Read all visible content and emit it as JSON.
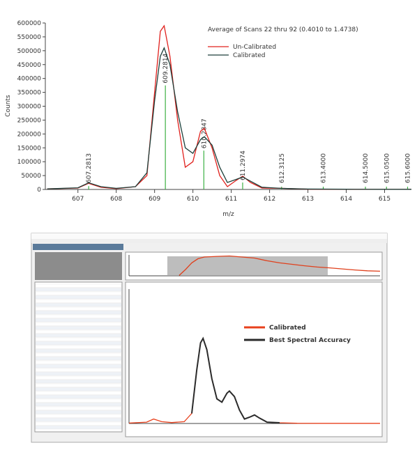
{
  "chart_data": [
    {
      "type": "line",
      "title": "Average of Scans 22 thru 92 (0.4010 to 1.4738)",
      "y_label": "Counts",
      "x_label": "m/z",
      "xlim": [
        606.15,
        615.7
      ],
      "xticks": [
        607,
        608,
        609,
        610,
        611,
        612,
        613,
        614,
        615
      ],
      "ylim": [
        0,
        600000
      ],
      "yticks": [
        0,
        50000,
        100000,
        150000,
        200000,
        250000,
        300000,
        350000,
        400000,
        450000,
        500000,
        550000,
        600000
      ],
      "x": [
        606.2,
        607.0,
        607.28,
        607.6,
        608.0,
        608.5,
        608.8,
        609.0,
        609.15,
        609.25,
        609.4,
        609.6,
        609.8,
        610.0,
        610.2,
        610.3,
        610.5,
        610.7,
        610.9,
        611.1,
        611.3,
        611.5,
        611.8,
        612.3,
        613.0,
        614.0,
        615.0,
        615.7
      ],
      "series": [
        {
          "name": "Un-Calibrated",
          "color": "#e0201c",
          "values": [
            2000,
            5000,
            22000,
            8000,
            3000,
            10000,
            50000,
            350000,
            570000,
            590000,
            480000,
            250000,
            80000,
            100000,
            210000,
            220000,
            150000,
            50000,
            10000,
            30000,
            48000,
            25000,
            5000,
            4000,
            1000,
            500,
            500,
            500
          ]
        },
        {
          "name": "Calibrated",
          "color": "#1c3f3a",
          "values": [
            2000,
            6000,
            24000,
            10000,
            4000,
            10000,
            60000,
            320000,
            480000,
            510000,
            450000,
            280000,
            150000,
            130000,
            180000,
            190000,
            160000,
            80000,
            25000,
            35000,
            45000,
            30000,
            8000,
            4000,
            1500,
            700,
            500,
            500
          ]
        }
      ],
      "peaks": {
        "color": "#3cb043",
        "x": [
          607.2813,
          609.2814,
          610.2847,
          611.2974,
          612.3125,
          613.4,
          614.5,
          615.05,
          615.6
        ],
        "x_labels": [
          "607.2813",
          "609.2814",
          "610.2847",
          "611.2974",
          "612.3125",
          "613.4000",
          "614.5000",
          "615.0500",
          "615.6000"
        ],
        "values": [
          12000,
          375000,
          140000,
          25000,
          1000,
          0,
          0,
          0,
          0
        ]
      }
    },
    {
      "type": "area",
      "xlim": [
        0,
        2.0
      ],
      "ylim": [
        0,
        1
      ],
      "x": [
        0.4,
        0.45,
        0.5,
        0.55,
        0.6,
        0.7,
        0.8,
        0.9,
        1.0,
        1.1,
        1.2,
        1.3,
        1.4,
        1.5,
        1.6,
        1.7,
        1.8,
        1.9,
        2.0
      ],
      "series": [
        {
          "color": "#e0401c",
          "values": [
            0.02,
            0.3,
            0.62,
            0.82,
            0.9,
            0.93,
            0.95,
            0.9,
            0.85,
            0.72,
            0.62,
            0.55,
            0.48,
            0.42,
            0.38,
            0.33,
            0.28,
            0.24,
            0.22
          ]
        }
      ]
    },
    {
      "type": "line",
      "xlim": [
        606.3,
        616.3
      ],
      "ylim": [
        0,
        600000
      ],
      "x": [
        606.3,
        607.0,
        607.28,
        607.6,
        608.0,
        608.5,
        608.8,
        609.0,
        609.15,
        609.25,
        609.4,
        609.6,
        609.8,
        610.0,
        610.2,
        610.3,
        610.5,
        610.7,
        610.9,
        611.1,
        611.3,
        611.5,
        611.8,
        612.3,
        613.0,
        614.0,
        615.0,
        616.3
      ],
      "series": [
        {
          "name": "Calibrated",
          "color": "#e8401c",
          "values": [
            2000,
            6000,
            20000,
            8000,
            4000,
            8000,
            45000,
            240000,
            360000,
            380000,
            330000,
            200000,
            110000,
            95000,
            135000,
            145000,
            120000,
            60000,
            20000,
            28000,
            38000,
            24000,
            6000,
            3000,
            1000,
            500,
            500,
            500
          ]
        },
        {
          "name": "Best Spectral Accuracy",
          "color": "#2b2b2b",
          "values": [
            null,
            null,
            null,
            null,
            null,
            null,
            45000,
            240000,
            360000,
            380000,
            330000,
            200000,
            110000,
            95000,
            135000,
            145000,
            120000,
            60000,
            20000,
            28000,
            38000,
            24000,
            6000,
            3000,
            null,
            null,
            null,
            null
          ]
        }
      ]
    }
  ]
}
